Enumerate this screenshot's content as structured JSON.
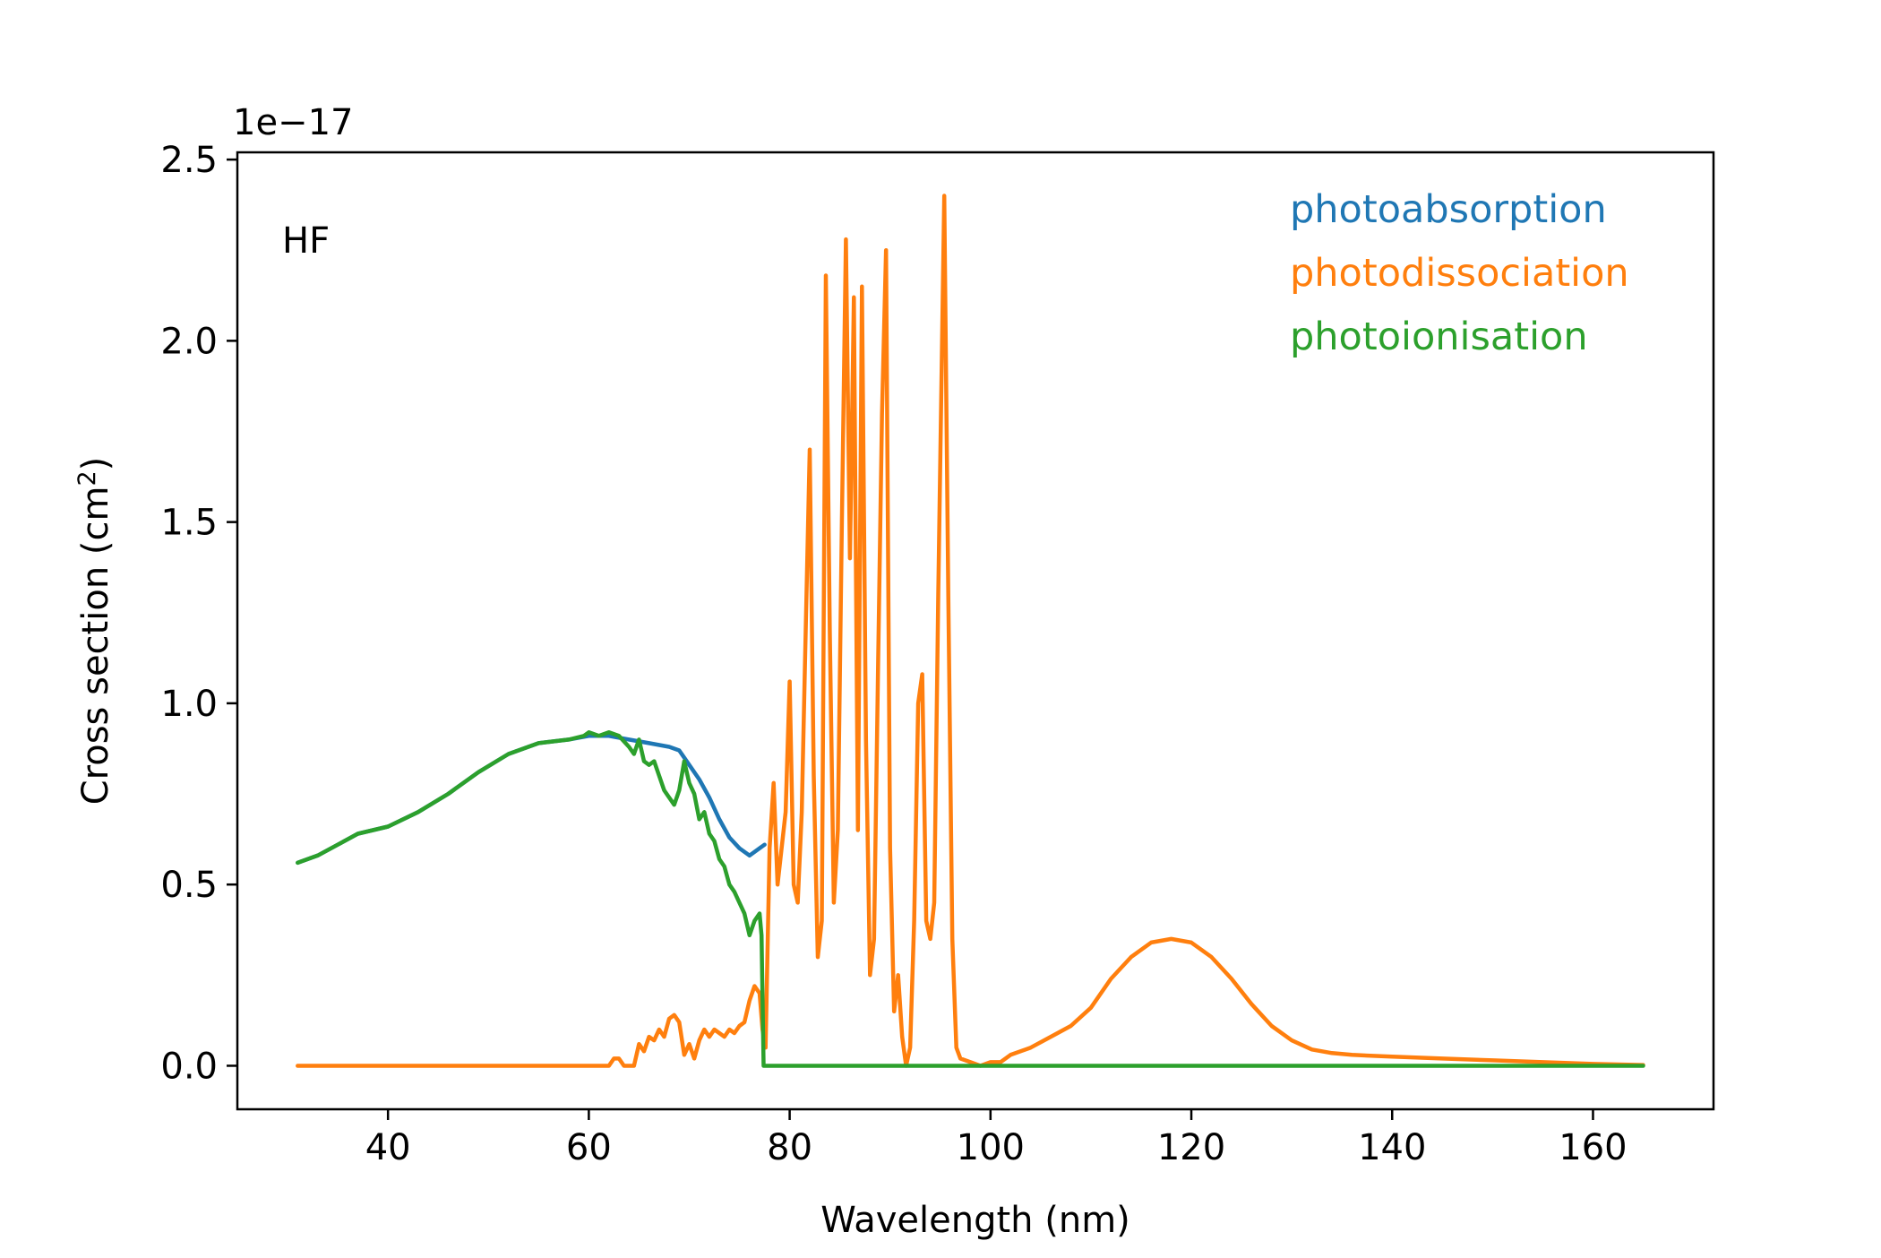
{
  "chart_data": {
    "type": "line",
    "annotation": "HF",
    "xlabel": "Wavelength (nm)",
    "ylabel_main": "Cross section (cm",
    "ylabel_sup": "2",
    "ylabel_tail": ")",
    "y_offset_label": "1e−17",
    "y_scale_exponent": -17,
    "xlim": [
      25,
      172
    ],
    "ylim": [
      -0.12,
      2.52
    ],
    "x_ticks": [
      40,
      60,
      80,
      100,
      120,
      140,
      160
    ],
    "x_tick_labels": [
      "40",
      "60",
      "80",
      "100",
      "120",
      "140",
      "160"
    ],
    "y_ticks": [
      0.0,
      0.5,
      1.0,
      1.5,
      2.0,
      2.5
    ],
    "y_tick_labels": [
      "0.0",
      "0.5",
      "1.0",
      "1.5",
      "2.0",
      "2.5"
    ],
    "grid": false,
    "legend_position": "top-right",
    "legend_style": "colored-text",
    "series": [
      {
        "name": "photoabsorption",
        "color": "#1f77b4",
        "points": [
          [
            31,
            0.56
          ],
          [
            33,
            0.58
          ],
          [
            35,
            0.61
          ],
          [
            37,
            0.64
          ],
          [
            40,
            0.66
          ],
          [
            43,
            0.7
          ],
          [
            46,
            0.75
          ],
          [
            49,
            0.81
          ],
          [
            52,
            0.86
          ],
          [
            55,
            0.89
          ],
          [
            58,
            0.9
          ],
          [
            60,
            0.91
          ],
          [
            62,
            0.91
          ],
          [
            64,
            0.9
          ],
          [
            66,
            0.89
          ],
          [
            68,
            0.88
          ],
          [
            69,
            0.87
          ],
          [
            70,
            0.83
          ],
          [
            71,
            0.79
          ],
          [
            72,
            0.74
          ],
          [
            73,
            0.68
          ],
          [
            74,
            0.63
          ],
          [
            75,
            0.6
          ],
          [
            76,
            0.58
          ],
          [
            77,
            0.6
          ],
          [
            77.5,
            0.61
          ]
        ]
      },
      {
        "name": "photodissociation",
        "color": "#ff7f0e",
        "points": [
          [
            31,
            0.0
          ],
          [
            62,
            0.0
          ],
          [
            62.5,
            0.02
          ],
          [
            63,
            0.02
          ],
          [
            63.5,
            0.0
          ],
          [
            64.5,
            0.0
          ],
          [
            65,
            0.06
          ],
          [
            65.5,
            0.04
          ],
          [
            66,
            0.08
          ],
          [
            66.5,
            0.07
          ],
          [
            67,
            0.1
          ],
          [
            67.5,
            0.08
          ],
          [
            68,
            0.13
          ],
          [
            68.5,
            0.14
          ],
          [
            69,
            0.12
          ],
          [
            69.5,
            0.03
          ],
          [
            70,
            0.06
          ],
          [
            70.5,
            0.02
          ],
          [
            71,
            0.07
          ],
          [
            71.5,
            0.1
          ],
          [
            72,
            0.08
          ],
          [
            72.5,
            0.1
          ],
          [
            73,
            0.09
          ],
          [
            73.5,
            0.08
          ],
          [
            74,
            0.1
          ],
          [
            74.5,
            0.09
          ],
          [
            75,
            0.11
          ],
          [
            75.5,
            0.12
          ],
          [
            76,
            0.18
          ],
          [
            76.5,
            0.22
          ],
          [
            77,
            0.2
          ],
          [
            77.3,
            0.1
          ],
          [
            77.6,
            0.05
          ],
          [
            78,
            0.6
          ],
          [
            78.4,
            0.78
          ],
          [
            78.8,
            0.5
          ],
          [
            79.2,
            0.6
          ],
          [
            79.6,
            0.7
          ],
          [
            80,
            1.06
          ],
          [
            80.4,
            0.5
          ],
          [
            80.8,
            0.45
          ],
          [
            81.2,
            0.7
          ],
          [
            81.6,
            1.2
          ],
          [
            82,
            1.7
          ],
          [
            82.4,
            0.8
          ],
          [
            82.8,
            0.3
          ],
          [
            83.2,
            0.4
          ],
          [
            83.6,
            2.18
          ],
          [
            84,
            1.2
          ],
          [
            84.4,
            0.45
          ],
          [
            84.8,
            0.65
          ],
          [
            85.2,
            1.5
          ],
          [
            85.6,
            2.28
          ],
          [
            86,
            1.4
          ],
          [
            86.4,
            2.12
          ],
          [
            86.8,
            0.65
          ],
          [
            87.2,
            2.15
          ],
          [
            87.6,
            0.9
          ],
          [
            88,
            0.25
          ],
          [
            88.4,
            0.35
          ],
          [
            88.8,
            1.1
          ],
          [
            89.2,
            1.8
          ],
          [
            89.6,
            2.25
          ],
          [
            90,
            0.6
          ],
          [
            90.4,
            0.15
          ],
          [
            90.8,
            0.25
          ],
          [
            91.2,
            0.08
          ],
          [
            91.6,
            0.0
          ],
          [
            92,
            0.05
          ],
          [
            92.4,
            0.4
          ],
          [
            92.8,
            1.0
          ],
          [
            93.2,
            1.08
          ],
          [
            93.6,
            0.4
          ],
          [
            94,
            0.35
          ],
          [
            94.4,
            0.45
          ],
          [
            94.8,
            1.3
          ],
          [
            95.4,
            2.4
          ],
          [
            95.8,
            1.3
          ],
          [
            96.2,
            0.35
          ],
          [
            96.6,
            0.05
          ],
          [
            97,
            0.02
          ],
          [
            98,
            0.01
          ],
          [
            99,
            0.0
          ],
          [
            100,
            0.01
          ],
          [
            101,
            0.01
          ],
          [
            102,
            0.03
          ],
          [
            104,
            0.05
          ],
          [
            106,
            0.08
          ],
          [
            108,
            0.11
          ],
          [
            110,
            0.16
          ],
          [
            112,
            0.24
          ],
          [
            114,
            0.3
          ],
          [
            116,
            0.34
          ],
          [
            118,
            0.35
          ],
          [
            120,
            0.34
          ],
          [
            122,
            0.3
          ],
          [
            124,
            0.24
          ],
          [
            126,
            0.17
          ],
          [
            128,
            0.11
          ],
          [
            130,
            0.07
          ],
          [
            132,
            0.045
          ],
          [
            134,
            0.035
          ],
          [
            136,
            0.03
          ],
          [
            140,
            0.025
          ],
          [
            145,
            0.02
          ],
          [
            150,
            0.015
          ],
          [
            155,
            0.01
          ],
          [
            160,
            0.005
          ],
          [
            165,
            0.002
          ]
        ]
      },
      {
        "name": "photoionisation",
        "color": "#2ca02c",
        "points": [
          [
            31,
            0.56
          ],
          [
            33,
            0.58
          ],
          [
            35,
            0.61
          ],
          [
            37,
            0.64
          ],
          [
            40,
            0.66
          ],
          [
            43,
            0.7
          ],
          [
            46,
            0.75
          ],
          [
            49,
            0.81
          ],
          [
            52,
            0.86
          ],
          [
            55,
            0.89
          ],
          [
            58,
            0.9
          ],
          [
            59.5,
            0.91
          ],
          [
            60,
            0.92
          ],
          [
            61,
            0.91
          ],
          [
            62,
            0.92
          ],
          [
            63,
            0.91
          ],
          [
            64,
            0.88
          ],
          [
            64.5,
            0.86
          ],
          [
            65,
            0.9
          ],
          [
            65.5,
            0.84
          ],
          [
            66,
            0.83
          ],
          [
            66.5,
            0.84
          ],
          [
            67,
            0.8
          ],
          [
            67.5,
            0.76
          ],
          [
            68,
            0.74
          ],
          [
            68.5,
            0.72
          ],
          [
            69,
            0.76
          ],
          [
            69.5,
            0.84
          ],
          [
            70,
            0.78
          ],
          [
            70.5,
            0.75
          ],
          [
            71,
            0.68
          ],
          [
            71.5,
            0.7
          ],
          [
            72,
            0.64
          ],
          [
            72.5,
            0.62
          ],
          [
            73,
            0.57
          ],
          [
            73.5,
            0.55
          ],
          [
            74,
            0.5
          ],
          [
            74.5,
            0.48
          ],
          [
            75,
            0.45
          ],
          [
            75.5,
            0.42
          ],
          [
            76,
            0.36
          ],
          [
            76.5,
            0.4
          ],
          [
            77,
            0.42
          ],
          [
            77.2,
            0.36
          ],
          [
            77.4,
            0.0
          ],
          [
            165,
            0.0
          ]
        ]
      }
    ]
  }
}
